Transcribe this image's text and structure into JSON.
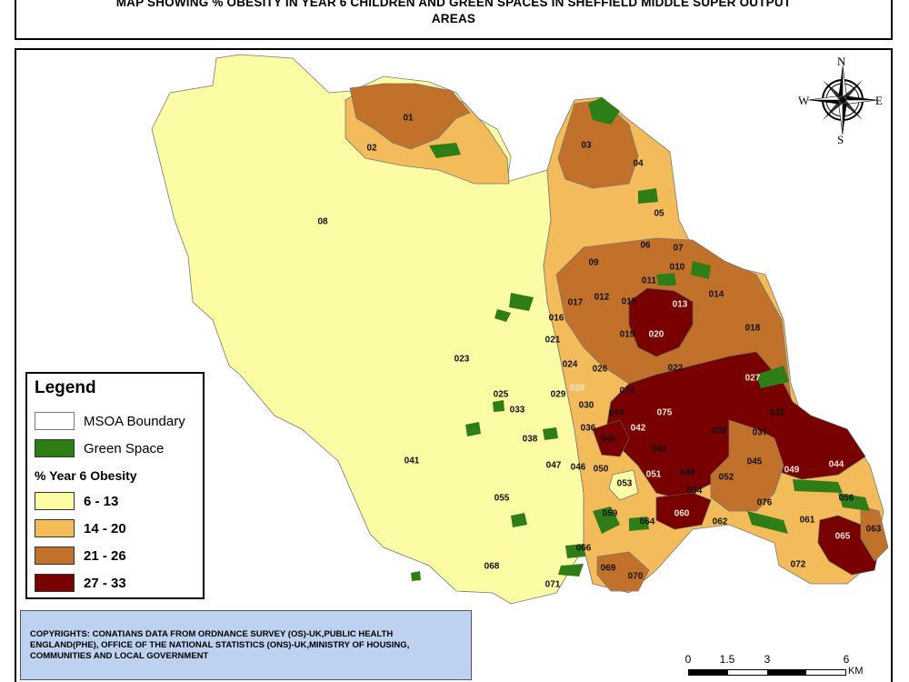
{
  "title": {
    "line1": "MAP SHOWING % OBESITY  IN YEAR 6 CHILDREN AND GREEN SPACES IN SHEFFIELD MIDDLE SUPER OUTPUT",
    "line2": "AREAS"
  },
  "legend": {
    "title": "Legend",
    "boundary_label": "MSOA Boundary",
    "green_label": "Green Space",
    "obesity_title": "%  Year 6 Obesity",
    "classes": [
      {
        "label": "6 - 13",
        "color": "#fcfca5"
      },
      {
        "label": "14 - 20",
        "color": "#f4bb5a"
      },
      {
        "label": "21 - 26",
        "color": "#c1712a"
      },
      {
        "label": "27 - 33",
        "color": "#780000"
      }
    ],
    "green_color": "#2e7d17"
  },
  "compass": {
    "n": "N",
    "s": "S",
    "e": "E",
    "w": "W"
  },
  "scale": {
    "ticks": [
      "0",
      "1.5",
      "3",
      "6"
    ],
    "unit": "KM"
  },
  "copyright": "COPYRIGHTS: CONATIANS DATA FROM ORDNANCE SURVEY (OS)-UK,PUBLIC HEALTH ENGLAND(PHE), OFFICE OF THE NATIONAL STATISTICS (ONS)-UK,MINISTRY OF HOUSING, COMMUNITIES AND LOCAL GOVERNMENT",
  "msoa_labels": [
    "01",
    "02",
    "03",
    "04",
    "05",
    "06",
    "07",
    "08",
    "09",
    "010",
    "011",
    "012",
    "013",
    "014",
    "015",
    "016",
    "017",
    "018",
    "019",
    "020",
    "021",
    "022",
    "023",
    "024",
    "025",
    "026",
    "027",
    "028",
    "029",
    "030",
    "032",
    "033",
    "036",
    "037",
    "038",
    "039",
    "040",
    "041",
    "042",
    "043",
    "044",
    "045",
    "046",
    "047",
    "048",
    "049",
    "050",
    "051",
    "052",
    "053",
    "054",
    "055",
    "056",
    "059",
    "060",
    "061",
    "062",
    "063",
    "064",
    "065",
    "066",
    "068",
    "069",
    "070",
    "071",
    "072",
    "073",
    "074",
    "075",
    "076"
  ]
}
